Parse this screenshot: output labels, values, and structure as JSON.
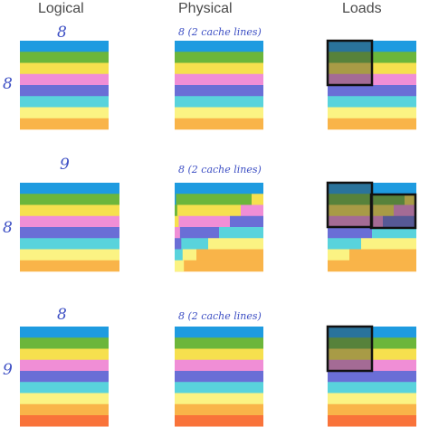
{
  "headers": {
    "logical": "Logical",
    "physical": "Physical",
    "loads": "Loads"
  },
  "row1": {
    "logical_top": "8",
    "physical_top": "8 (2 cache lines)",
    "side": "8"
  },
  "row2": {
    "logical_top": "9",
    "physical_top": "8 (2 cache lines)",
    "side": "8"
  },
  "row3": {
    "logical_top": "8",
    "physical_top": "8 (2 cache lines)",
    "side": "9"
  },
  "colors": {
    "blue": "#1e9be0",
    "green": "#6cb63b",
    "yellow": "#f6e04e",
    "pink": "#f08ed6",
    "indigo": "#6a6ed6",
    "cyan": "#59d3dc",
    "lightyellow": "#fbf383",
    "orange": "#f9b449",
    "deeporange": "#f9733a"
  }
}
